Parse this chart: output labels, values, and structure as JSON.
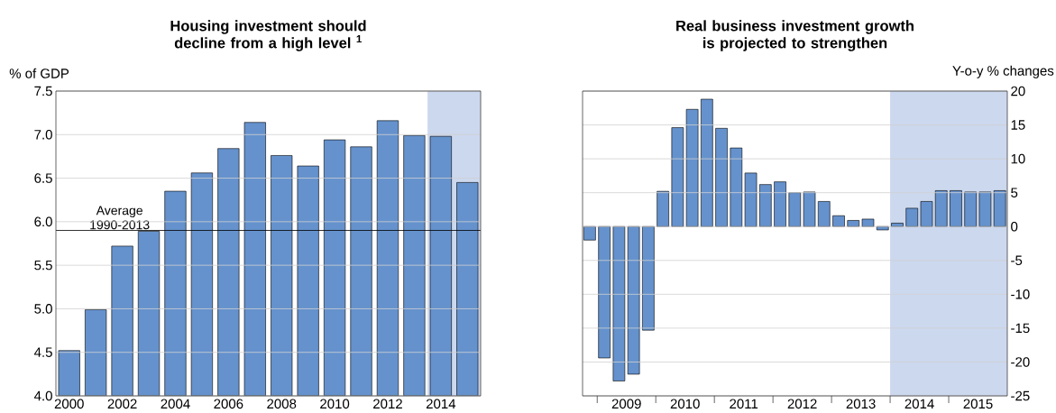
{
  "chart_data": [
    {
      "type": "bar",
      "title": "Housing investment should decline from a high level $^{1}$",
      "ylabel": "% of GDP",
      "x": [
        2000,
        2001,
        2002,
        2003,
        2004,
        2005,
        2006,
        2007,
        2008,
        2009,
        2010,
        2011,
        2012,
        2013,
        2014,
        2015
      ],
      "values": [
        4.52,
        4.99,
        5.72,
        5.89,
        6.35,
        6.56,
        6.84,
        7.14,
        6.76,
        6.64,
        6.94,
        6.86,
        7.16,
        6.99,
        6.98,
        6.45
      ],
      "color": "#6592cd",
      "xlim": [
        1999.5,
        2015.5
      ],
      "xticks": [
        2000,
        2002,
        2004,
        2006,
        2008,
        2010,
        2012,
        2014
      ],
      "ylim": [
        4,
        7.5
      ],
      "yticks": [
        {
          "value": 4,
          "label": "4.0"
        },
        4.5,
        {
          "value": 5,
          "label": "5.0"
        },
        5.5,
        {
          "value": 6,
          "label": "6.0"
        },
        6.5,
        {
          "value": 7,
          "label": "7.0"
        },
        7.5
      ],
      "ref_lines": [
        {
          "axis": "y",
          "value": 5.9,
          "label": "Average 1990-2013",
          "color": "#000000"
        }
      ],
      "bands": [
        {
          "axis": "x",
          "from": 2013.5,
          "to": 2015.5,
          "color": "#ccd8ee"
        }
      ],
      "grid": "y"
    },
    {
      "type": "bar",
      "title": "Real business investment growth is projected to strengthen",
      "ylabel": "Y-o-y % changes",
      "x": [
        "2008-11-15",
        "2009-02-15",
        "2009-05-15",
        "2009-08-15",
        "2009-11-15",
        "2010-02-15",
        "2010-05-15",
        "2010-08-15",
        "2010-11-15",
        "2011-02-15",
        "2011-05-15",
        "2011-08-15",
        "2011-11-15",
        "2012-02-15",
        "2012-05-15",
        "2012-08-15",
        "2012-11-15",
        "2013-02-15",
        "2013-05-15",
        "2013-08-15",
        "2013-11-15",
        "2014-02-15",
        "2014-05-15",
        "2014-08-15",
        "2014-11-15",
        "2015-02-15",
        "2015-05-15",
        "2015-08-15",
        "2015-11-15"
      ],
      "values": [
        -2.0,
        -19.4,
        -22.8,
        -21.8,
        -15.3,
        5.2,
        14.6,
        17.3,
        18.8,
        14.5,
        11.6,
        7.9,
        6.2,
        6.6,
        5.0,
        5.1,
        3.7,
        1.6,
        0.9,
        1.1,
        -0.5,
        0.5,
        2.7,
        3.7,
        5.3,
        5.3,
        5.1,
        5.1,
        5.3
      ],
      "color": "#6592cd",
      "xlim": [
        "2008-10",
        "2016-01"
      ],
      "xticks": [
        {
          "value": "2009-01",
          "label": null
        },
        {
          "value": "2009-07",
          "label": "2009"
        },
        {
          "value": "2010-01",
          "label": null
        },
        {
          "value": "2010-07",
          "label": "2010"
        },
        {
          "value": "2011-01",
          "label": null
        },
        {
          "value": "2011-07",
          "label": "2011"
        },
        {
          "value": "2012-01",
          "label": null
        },
        {
          "value": "2012-07",
          "label": "2012"
        },
        {
          "value": "2013-01",
          "label": null
        },
        {
          "value": "2013-07",
          "label": "2013"
        },
        {
          "value": "2014-01",
          "label": null
        },
        {
          "value": "2014-07",
          "label": "2014"
        },
        {
          "value": "2015-01",
          "label": null
        },
        {
          "value": "2015-07",
          "label": "2015"
        }
      ],
      "ylim": [
        -25,
        20
      ],
      "yticks": [
        -25,
        -20,
        -15,
        -10,
        -5,
        0,
        5,
        10,
        15,
        20
      ],
      "bands": [
        {
          "axis": "x",
          "from": "2014-01",
          "to": "2016-01",
          "color": "#ccd8ee"
        }
      ],
      "grid": "y"
    }
  ]
}
